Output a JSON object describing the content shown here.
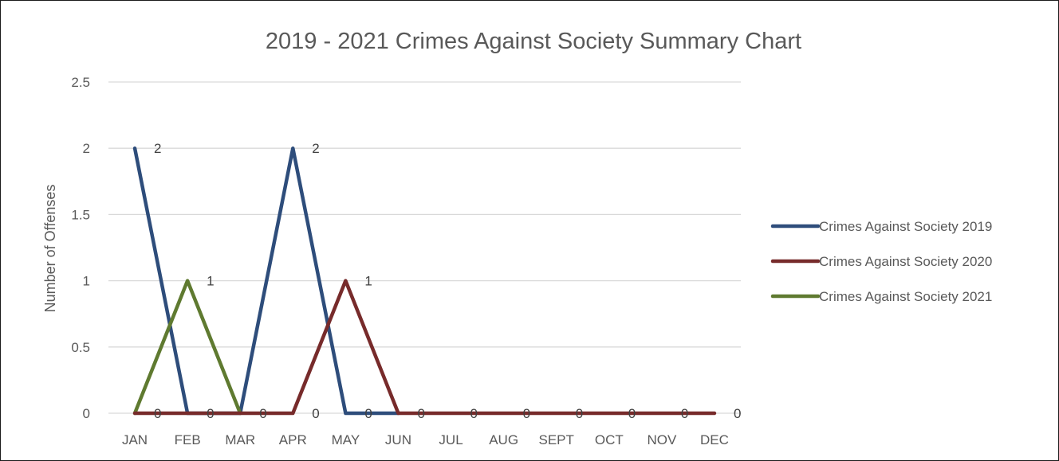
{
  "chart_data": {
    "type": "line",
    "title": "2019 - 2021 Crimes Against Society Summary Chart",
    "ylabel": "Number of Offenses",
    "xlabel": "",
    "categories": [
      "JAN",
      "FEB",
      "MAR",
      "APR",
      "MAY",
      "JUN",
      "JUL",
      "AUG",
      "SEPT",
      "OCT",
      "NOV",
      "DEC"
    ],
    "ylim": [
      0,
      2.5
    ],
    "yticks": [
      "0",
      "0.5",
      "1",
      "1.5",
      "2",
      "2.5"
    ],
    "grid": true,
    "legend_position": "right",
    "series": [
      {
        "name": "Crimes Against Society 2019",
        "color": "#2E4D7B",
        "values": [
          2,
          0,
          0,
          2,
          0,
          0,
          null,
          null,
          null,
          null,
          null,
          null
        ]
      },
      {
        "name": "Crimes Against Society 2020",
        "color": "#772B2B",
        "values": [
          0,
          0,
          0,
          0,
          1,
          0,
          0,
          0,
          0,
          0,
          0,
          0
        ]
      },
      {
        "name": "Crimes Against Society 2021",
        "color": "#5F7A30",
        "values": [
          0,
          1,
          0,
          null,
          null,
          null,
          null,
          null,
          null,
          null,
          null,
          null
        ]
      }
    ],
    "data_labels": [
      {
        "series": 0,
        "category": "JAN",
        "text": "2"
      },
      {
        "series": 0,
        "category": "APR",
        "text": "2"
      },
      {
        "series": 2,
        "category": "FEB",
        "text": "1"
      },
      {
        "series": 1,
        "category": "MAY",
        "text": "1"
      },
      {
        "series": 1,
        "category": "JAN",
        "text": "0"
      },
      {
        "series": 1,
        "category": "FEB",
        "text": "0"
      },
      {
        "series": 1,
        "category": "MAR",
        "text": "0"
      },
      {
        "series": 1,
        "category": "APR",
        "text": "0"
      },
      {
        "series": 0,
        "category": "MAY",
        "text": "0"
      },
      {
        "series": 1,
        "category": "JUN",
        "text": "0"
      },
      {
        "series": 1,
        "category": "JUL",
        "text": "0"
      },
      {
        "series": 1,
        "category": "AUG",
        "text": "0"
      },
      {
        "series": 1,
        "category": "SEPT",
        "text": "0"
      },
      {
        "series": 1,
        "category": "OCT",
        "text": "0"
      },
      {
        "series": 1,
        "category": "NOV",
        "text": "0"
      },
      {
        "series": 1,
        "category": "DEC",
        "text": "0"
      }
    ]
  }
}
